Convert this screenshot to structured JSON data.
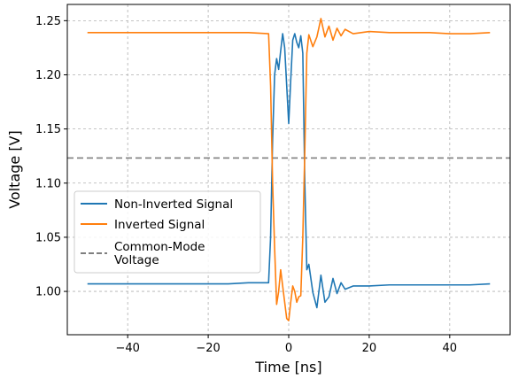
{
  "chart_data": {
    "type": "line",
    "xlabel": "Time [ns]",
    "ylabel": "Voltage [V]",
    "xlim": [
      -55,
      55
    ],
    "ylim": [
      0.96,
      1.265
    ],
    "x_ticks": [
      -40,
      -20,
      0,
      20,
      40
    ],
    "x_tick_labels": [
      "−40",
      "−20",
      "0",
      "20",
      "40"
    ],
    "y_ticks": [
      1.0,
      1.05,
      1.1,
      1.15,
      1.2,
      1.25
    ],
    "y_tick_labels": [
      "1.00",
      "1.05",
      "1.10",
      "1.15",
      "1.20",
      "1.25"
    ],
    "grid": true,
    "legend_position": "center-left",
    "series": [
      {
        "name": "Non-Inverted Signal",
        "color": "#1f77b4",
        "style": "solid",
        "x": [
          -50,
          -45,
          -40,
          -35,
          -30,
          -25,
          -20,
          -15,
          -10,
          -5,
          -4.5,
          -4,
          -3.5,
          -3,
          -2.5,
          -2,
          -1.5,
          -1,
          -0.5,
          0,
          0.5,
          1,
          1.5,
          2,
          2.5,
          3,
          3.5,
          4,
          4.5,
          5,
          6,
          7,
          8,
          9,
          10,
          11,
          12,
          13,
          14,
          16,
          20,
          25,
          30,
          35,
          40,
          45,
          50
        ],
        "y": [
          1.007,
          1.007,
          1.007,
          1.007,
          1.007,
          1.007,
          1.007,
          1.007,
          1.008,
          1.008,
          1.05,
          1.14,
          1.2,
          1.215,
          1.205,
          1.222,
          1.238,
          1.225,
          1.19,
          1.155,
          1.195,
          1.232,
          1.238,
          1.23,
          1.225,
          1.236,
          1.22,
          1.1,
          1.02,
          1.025,
          0.999,
          0.985,
          1.015,
          0.99,
          0.995,
          1.012,
          0.998,
          1.008,
          1.002,
          1.005,
          1.005,
          1.006,
          1.006,
          1.006,
          1.006,
          1.006,
          1.007
        ]
      },
      {
        "name": "Inverted Signal",
        "color": "#ff7f0e",
        "style": "solid",
        "x": [
          -50,
          -45,
          -40,
          -35,
          -30,
          -25,
          -20,
          -15,
          -10,
          -5,
          -4.5,
          -4,
          -3.5,
          -3,
          -2.5,
          -2,
          -1.5,
          -1,
          -0.5,
          0,
          0.5,
          1,
          1.5,
          2,
          2.5,
          3,
          3.5,
          4,
          4.5,
          5,
          6,
          7,
          8,
          9,
          10,
          11,
          12,
          13,
          14,
          16,
          20,
          25,
          30,
          35,
          40,
          45,
          50
        ],
        "y": [
          1.239,
          1.239,
          1.239,
          1.239,
          1.239,
          1.239,
          1.239,
          1.239,
          1.239,
          1.238,
          1.19,
          1.1,
          1.04,
          0.988,
          1.0,
          1.02,
          1.005,
          0.99,
          0.975,
          0.973,
          0.99,
          1.005,
          1.0,
          0.99,
          0.995,
          0.996,
          1.05,
          1.13,
          1.22,
          1.237,
          1.226,
          1.235,
          1.252,
          1.235,
          1.245,
          1.232,
          1.243,
          1.236,
          1.242,
          1.238,
          1.24,
          1.239,
          1.239,
          1.239,
          1.238,
          1.238,
          1.239
        ]
      },
      {
        "name": "Common-Mode Voltage",
        "color": "#7f7f7f",
        "style": "dashed",
        "constant": 1.1232
      }
    ]
  },
  "legend": {
    "items": [
      {
        "label": "Non-Inverted Signal"
      },
      {
        "label": "Inverted Signal"
      },
      {
        "label": "Common-Mode",
        "label2": "Voltage"
      }
    ]
  }
}
